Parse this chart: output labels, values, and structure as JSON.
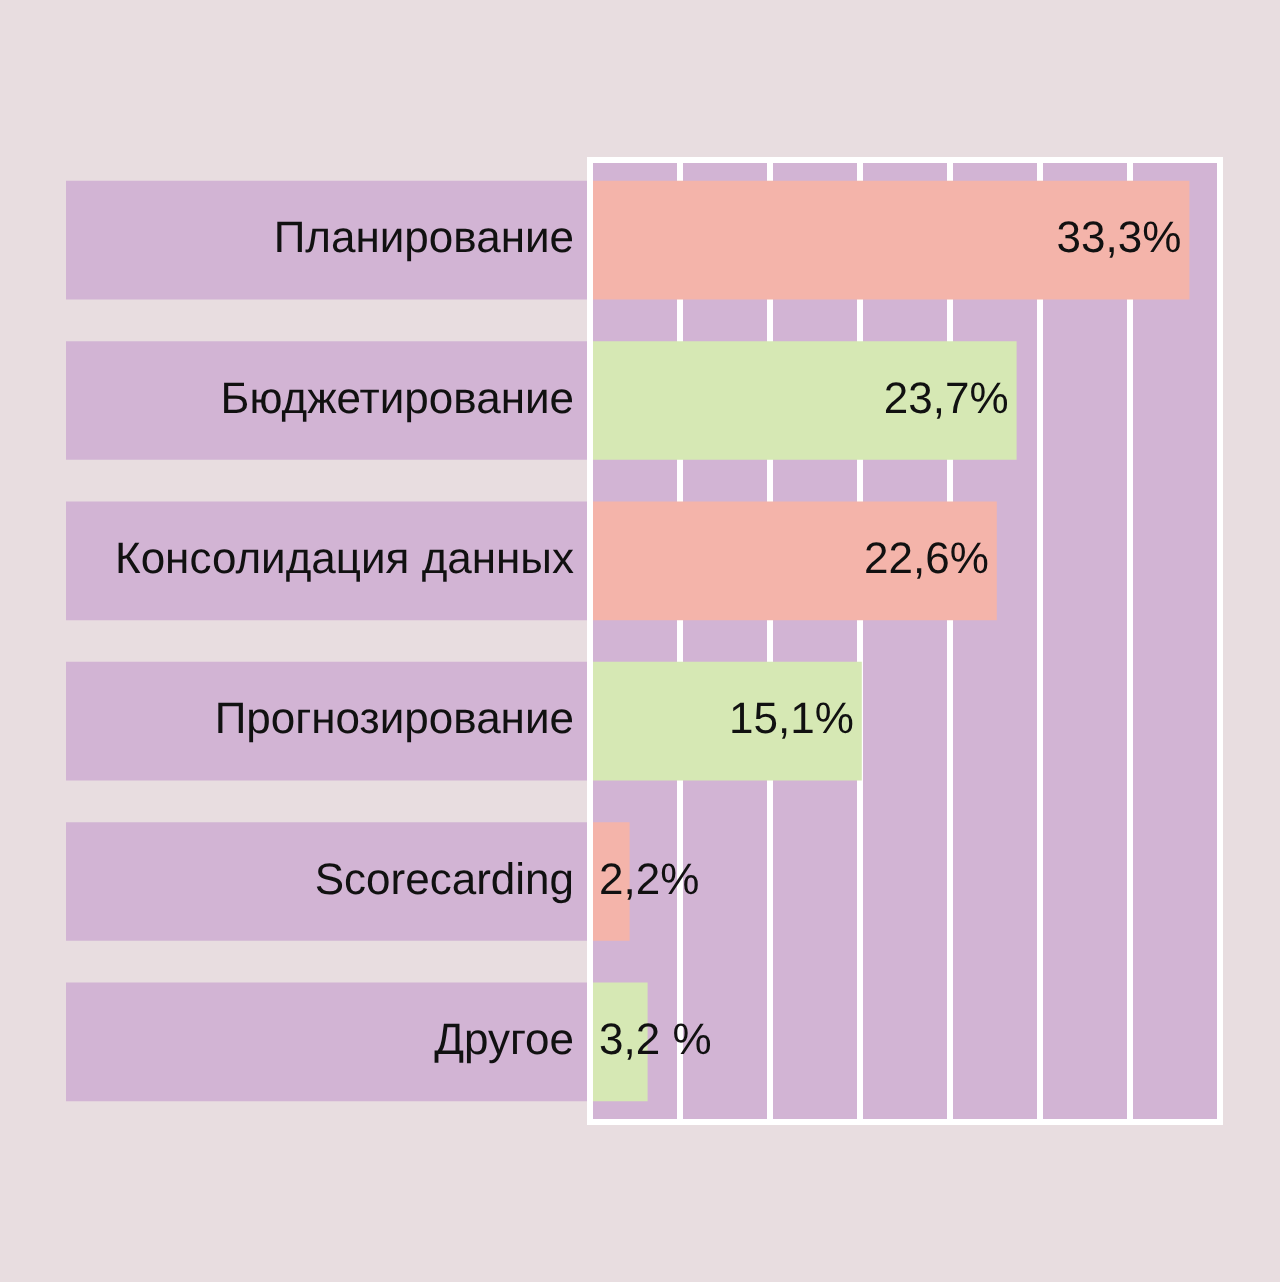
{
  "chart_data": {
    "type": "bar",
    "orientation": "horizontal",
    "categories": [
      "Планирование",
      "Бюджетирование",
      "Консолидация данных",
      "Прогнозирование",
      "Scorecarding",
      "Другое"
    ],
    "values": [
      33.3,
      23.7,
      22.6,
      15.1,
      2.2,
      3.2
    ],
    "colors": [
      "#f4b4aa",
      "#d6e8b4",
      "#f4b4aa",
      "#d6e8b4",
      "#f4b4aa",
      "#d6e8b4"
    ],
    "value_labels": [
      "33,3%",
      "23,7%",
      "22,6%",
      "15,1%",
      "2,2%",
      "3,2 %"
    ],
    "grid": "x",
    "tick_labels": "y",
    "legend": false
  }
}
